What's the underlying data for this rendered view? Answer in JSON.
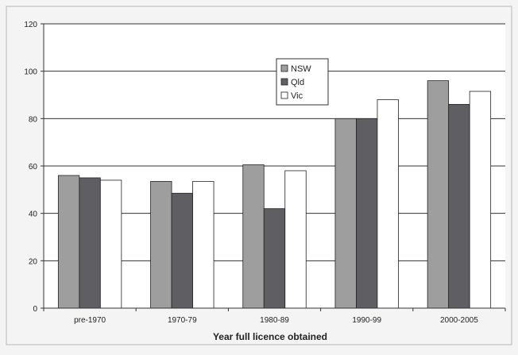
{
  "chart_data": {
    "type": "bar",
    "title": "",
    "xlabel": "Year full licence obtained",
    "ylabel": "",
    "ylim": [
      0,
      120
    ],
    "yticks": [
      0,
      20,
      40,
      60,
      80,
      100,
      120
    ],
    "grid": true,
    "legend_position": "top-center",
    "categories": [
      "pre-1970",
      "1970-79",
      "1980-89",
      "1990-99",
      "2000-2005"
    ],
    "series": [
      {
        "name": "NSW",
        "color": "#9e9e9e",
        "values": [
          56,
          53.5,
          60.5,
          80,
          96
        ]
      },
      {
        "name": "Qld",
        "color": "#5e5e63",
        "values": [
          55,
          48.5,
          42,
          80,
          86
        ]
      },
      {
        "name": "Vic",
        "color": "#ffffff",
        "values": [
          54,
          53.5,
          58,
          88,
          91.5
        ]
      }
    ]
  }
}
